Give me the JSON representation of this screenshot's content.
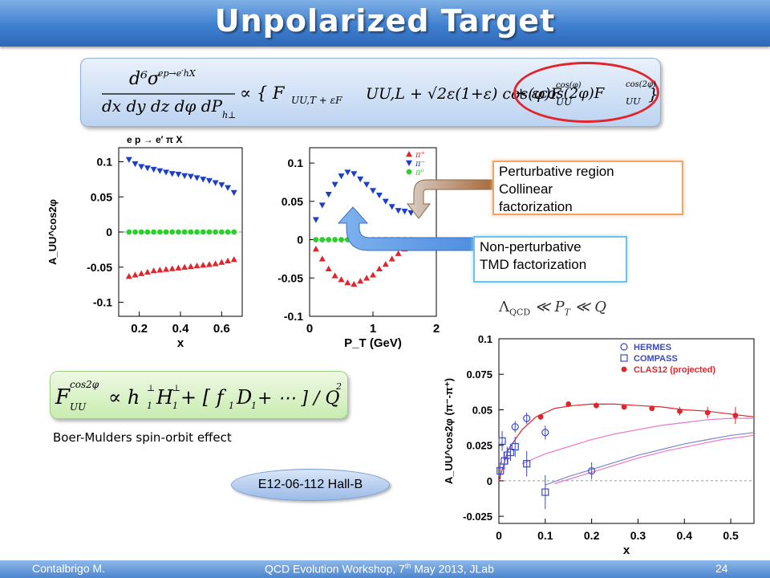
{
  "title": "Unpolarized Target",
  "equation_main": {
    "lhs_num": "d⁶σ",
    "lhs_sup": "ep→e′hX",
    "lhs_den": "dx dy dz dφ dP",
    "lhs_den_sub": "h⊥",
    "rhs": "∝ { F",
    "rhs_tail": "UU,T + εF",
    "rhs_2": "UU,L + √2ε(1+ε) cos(φ)F",
    "rhs_3": "UU",
    "rhs_cos1": "cos(φ)",
    "rhs_4": " + εcos(2φ)F",
    "rhs_5": "UU",
    "rhs_cos2": "cos(2φ)",
    "rhs_close": "}"
  },
  "equation_bm": {
    "text1": "F",
    "sup": "cos2φ",
    "sub": "UU",
    "text2": "∝ h",
    "text3": "H",
    "text4": " + [ f",
    "text5": "D",
    "text6": " + ⋯ ] / Q",
    "sup2": "2",
    "one": "1",
    "perp": "⊥"
  },
  "callouts": {
    "perturbative": [
      "Perturbative region",
      "Collinear",
      "factorization"
    ],
    "nonperturbative": [
      "Non-perturbative",
      "TMD factorization"
    ]
  },
  "qcd_text": "Λ_QCD ≪ P_T ≪ Q",
  "qcd_lambda": "Λ",
  "qcd_sub": "QCD",
  "qcd_rest": " ≪ P",
  "qcd_t": "T",
  "qcd_q": " ≪ Q",
  "bm_text": "Boer-Mulders spin-orbit effect",
  "experiment": "E12-06-112  Hall-B",
  "footer": {
    "left": "Contalbrigo M.",
    "center": "QCD Evolution Workshop, 7",
    "center_sup": "th",
    "center_tail": " May 2013, JLab",
    "page": "24"
  },
  "colors": {
    "red": "#e0252b",
    "blue": "#1d3fc8",
    "green": "#2bd12b",
    "title_bg": "#3f7fd0"
  },
  "chart_data": [
    {
      "type": "scatter",
      "title": "e p → e′ π X",
      "xlabel": "x",
      "ylabel": "A_UU^cos2φ",
      "xlim": [
        0.1,
        0.7
      ],
      "ylim": [
        -0.12,
        0.12
      ],
      "xticks": [
        "0.2",
        "0.4",
        "0.6"
      ],
      "xtick_values": [
        0.2,
        0.4,
        0.6
      ],
      "yticks": [
        "0.1",
        "0.05",
        "0",
        "-0.05",
        "-0.1"
      ],
      "ytick_values": [
        0.1,
        0.05,
        0,
        -0.05,
        -0.1
      ],
      "series": [
        {
          "marker": "triangle-down",
          "color": "#1d3fc8",
          "x": [
            0.15,
            0.18,
            0.21,
            0.24,
            0.27,
            0.3,
            0.33,
            0.36,
            0.39,
            0.42,
            0.45,
            0.48,
            0.51,
            0.54,
            0.57,
            0.6,
            0.63,
            0.66
          ],
          "y": [
            0.103,
            0.097,
            0.093,
            0.091,
            0.089,
            0.087,
            0.085,
            0.083,
            0.082,
            0.08,
            0.079,
            0.077,
            0.075,
            0.073,
            0.07,
            0.067,
            0.063,
            0.056
          ]
        },
        {
          "marker": "circle",
          "color": "#2bd12b",
          "x": [
            0.15,
            0.18,
            0.21,
            0.24,
            0.27,
            0.3,
            0.33,
            0.36,
            0.39,
            0.42,
            0.45,
            0.48,
            0.51,
            0.54,
            0.57,
            0.6,
            0.63,
            0.66
          ],
          "y": [
            0,
            0,
            0,
            0,
            0,
            0,
            0,
            0,
            0,
            0,
            0,
            0,
            0,
            0,
            0,
            0,
            0,
            0
          ]
        },
        {
          "marker": "triangle-up",
          "color": "#e0252b",
          "x": [
            0.15,
            0.18,
            0.21,
            0.24,
            0.27,
            0.3,
            0.33,
            0.36,
            0.39,
            0.42,
            0.45,
            0.48,
            0.51,
            0.54,
            0.57,
            0.6,
            0.63,
            0.66
          ],
          "y": [
            -0.063,
            -0.061,
            -0.059,
            -0.057,
            -0.055,
            -0.054,
            -0.053,
            -0.052,
            -0.051,
            -0.05,
            -0.049,
            -0.048,
            -0.047,
            -0.046,
            -0.045,
            -0.043,
            -0.041,
            -0.039
          ]
        }
      ]
    },
    {
      "type": "scatter",
      "xlabel": "P_T (GeV)",
      "ylabel": "",
      "xlim": [
        0,
        2
      ],
      "ylim": [
        -0.1,
        0.12
      ],
      "xticks": [
        "0",
        "1",
        "2"
      ],
      "xtick_values": [
        0,
        1,
        2
      ],
      "yticks": [
        "0.1",
        "0.05",
        "0",
        "-0.05",
        "-0.1"
      ],
      "ytick_values": [
        0.1,
        0.05,
        0,
        -0.05,
        -0.1
      ],
      "legend": [
        "π⁺",
        "π⁻",
        "π⁰"
      ],
      "legend_position": "top-right",
      "series": [
        {
          "name": "π⁺",
          "marker": "triangle-up",
          "color": "#e0252b",
          "x": [
            0.1,
            0.2,
            0.3,
            0.4,
            0.5,
            0.6,
            0.7,
            0.8,
            0.9,
            1.0,
            1.1,
            1.2,
            1.3,
            1.4,
            1.5,
            1.6
          ],
          "y": [
            -0.012,
            -0.025,
            -0.038,
            -0.047,
            -0.052,
            -0.056,
            -0.058,
            -0.054,
            -0.05,
            -0.046,
            -0.038,
            -0.032,
            -0.025,
            -0.018,
            -0.012,
            -0.004
          ]
        },
        {
          "name": "π⁻",
          "marker": "triangle-down",
          "color": "#1d3fc8",
          "x": [
            0.1,
            0.2,
            0.3,
            0.4,
            0.5,
            0.6,
            0.7,
            0.8,
            0.9,
            1.0,
            1.1,
            1.2,
            1.3,
            1.4,
            1.5,
            1.6
          ],
          "y": [
            0.026,
            0.045,
            0.059,
            0.072,
            0.083,
            0.088,
            0.086,
            0.079,
            0.072,
            0.064,
            0.058,
            0.05,
            0.043,
            0.038,
            0.037,
            0.035
          ]
        },
        {
          "name": "π⁰",
          "marker": "circle",
          "color": "#2bd12b",
          "x": [
            0.1,
            0.2,
            0.3,
            0.4,
            0.5,
            0.6,
            0.7,
            0.8,
            0.9,
            1.0,
            1.1,
            1.2,
            1.3,
            1.4,
            1.5,
            1.6
          ],
          "y": [
            0,
            0,
            0,
            0,
            0,
            0,
            0,
            0,
            0,
            0,
            0,
            0,
            0,
            0,
            0,
            0
          ]
        }
      ]
    },
    {
      "type": "scatter",
      "xlabel": "x",
      "ylabel": "A_UU^cos2φ (π⁻-π⁺)",
      "xlim": [
        0,
        0.55
      ],
      "ylim": [
        -0.03,
        0.1
      ],
      "xticks": [
        "0",
        "0.1",
        "0.2",
        "0.3",
        "0.4",
        "0.5"
      ],
      "xtick_values": [
        0,
        0.1,
        0.2,
        0.3,
        0.4,
        0.5
      ],
      "yticks": [
        "0.1",
        "0.075",
        "0.05",
        "0.025",
        "0",
        "-0.025"
      ],
      "ytick_values": [
        0.1,
        0.075,
        0.05,
        0.025,
        0,
        -0.025
      ],
      "legend_position": "top-right",
      "series": [
        {
          "name": "HERMES",
          "marker": "open-circle",
          "color": "#3a49c9",
          "x": [
            0.035,
            0.06,
            0.1,
            0.2
          ],
          "y": [
            0.038,
            0.044,
            0.034,
            0.007
          ],
          "err": [
            0.004,
            0.004,
            0.005,
            0.006
          ]
        },
        {
          "name": "COMPASS",
          "marker": "open-square",
          "color": "#3a49c9",
          "x": [
            0.003,
            0.007,
            0.012,
            0.018,
            0.025,
            0.035,
            0.06,
            0.1
          ],
          "y": [
            0.007,
            0.028,
            0.014,
            0.018,
            0.02,
            0.024,
            0.012,
            -0.008
          ],
          "err": [
            0.006,
            0.007,
            0.006,
            0.006,
            0.006,
            0.007,
            0.009,
            0.012
          ]
        },
        {
          "name": "CLAS12 (projected)",
          "marker": "filled-circle",
          "color": "#e0252b",
          "x": [
            0.09,
            0.15,
            0.21,
            0.27,
            0.33,
            0.39,
            0.45,
            0.51
          ],
          "y": [
            0.045,
            0.054,
            0.053,
            0.052,
            0.051,
            0.049,
            0.048,
            0.046
          ],
          "err": [
            0.002,
            0.002,
            0.002,
            0.002,
            0.002,
            0.003,
            0.004,
            0.006
          ]
        }
      ],
      "curves": [
        {
          "color": "#e0252b",
          "x": [
            0.0,
            0.02,
            0.05,
            0.08,
            0.12,
            0.16,
            0.2,
            0.25,
            0.3,
            0.35,
            0.4,
            0.45,
            0.5,
            0.55
          ],
          "y": [
            0.0,
            0.022,
            0.036,
            0.045,
            0.051,
            0.053,
            0.054,
            0.054,
            0.053,
            0.052,
            0.05,
            0.049,
            0.047,
            0.045
          ]
        },
        {
          "color": "#e87ac8",
          "x": [
            0.05,
            0.1,
            0.15,
            0.2,
            0.25,
            0.3,
            0.35,
            0.4,
            0.45,
            0.5,
            0.55
          ],
          "y": [
            0.012,
            0.019,
            0.024,
            0.029,
            0.033,
            0.036,
            0.039,
            0.041,
            0.043,
            0.044,
            0.044
          ]
        },
        {
          "color": "#7c86d6",
          "x": [
            0.1,
            0.15,
            0.2,
            0.25,
            0.3,
            0.35,
            0.4,
            0.45,
            0.5,
            0.55
          ],
          "y": [
            -0.003,
            0.003,
            0.008,
            0.013,
            0.018,
            0.022,
            0.026,
            0.029,
            0.032,
            0.034
          ]
        },
        {
          "color": "#e87ac8",
          "x": [
            0.12,
            0.18,
            0.24,
            0.3,
            0.36,
            0.42,
            0.48,
            0.55
          ],
          "y": [
            -0.002,
            0.004,
            0.01,
            0.016,
            0.021,
            0.025,
            0.029,
            0.032
          ]
        }
      ]
    }
  ]
}
